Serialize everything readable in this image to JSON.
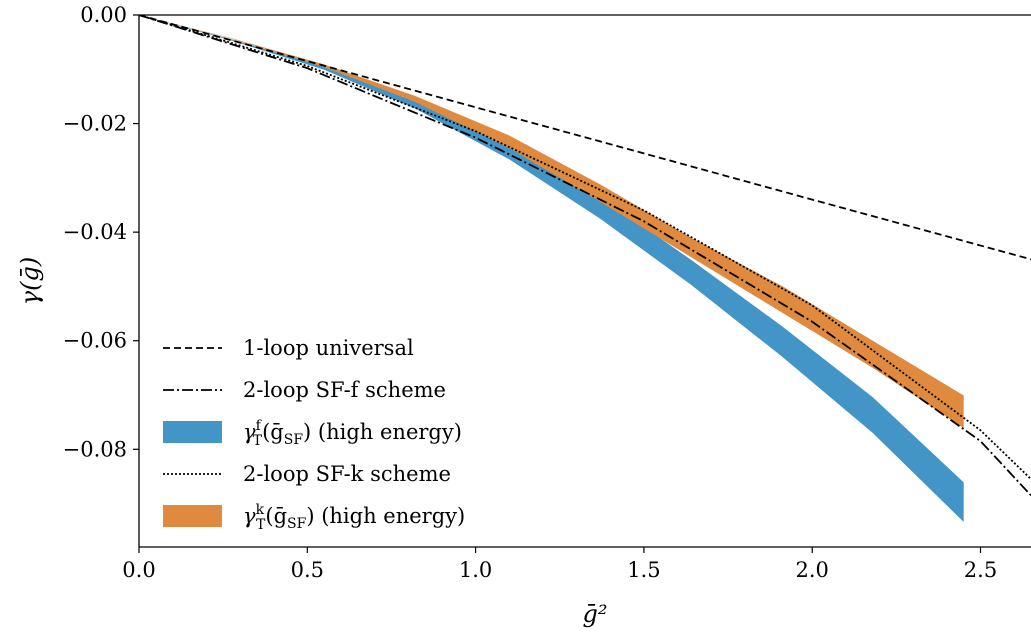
{
  "chart_data": {
    "type": "line",
    "xlabel": "ḡ²",
    "ylabel": "γ(ḡ)",
    "xlim": [
      0.0,
      2.65
    ],
    "ylim": [
      -0.098,
      0.0
    ],
    "xticks": [
      0.0,
      0.5,
      1.0,
      1.5,
      2.0,
      2.5
    ],
    "xtick_labels": [
      "0.0",
      "0.5",
      "1.0",
      "1.5",
      "2.0",
      "2.5"
    ],
    "yticks": [
      0.0,
      -0.02,
      -0.04,
      -0.06,
      -0.08
    ],
    "ytick_labels": [
      "0.00",
      "−0.02",
      "−0.04",
      "−0.06",
      "−0.08"
    ],
    "grid": false,
    "legend_position": "lower-left",
    "series": [
      {
        "name": "1-loop universal",
        "kind": "line",
        "style": "dashed",
        "color": "#000000",
        "x": [
          0.0,
          0.5,
          1.0,
          1.5,
          2.0,
          2.65
        ],
        "y": [
          0.0,
          -0.0085,
          -0.017,
          -0.0255,
          -0.034,
          -0.045
        ]
      },
      {
        "name": "2-loop SF-f scheme",
        "kind": "line",
        "style": "dashdot",
        "color": "#000000",
        "x": [
          0.0,
          0.5,
          1.0,
          1.5,
          2.0,
          2.5,
          2.65
        ],
        "y": [
          0.0,
          -0.0098,
          -0.0226,
          -0.038,
          -0.0565,
          -0.0785,
          -0.0885
        ]
      },
      {
        "name": "γ_T^f(ḡ_SF) (high energy)",
        "kind": "band",
        "color": "#4394c7",
        "x": [
          0.0,
          0.27,
          0.55,
          0.82,
          1.1,
          1.37,
          1.64,
          1.91,
          2.18,
          2.45
        ],
        "y_upper": [
          0.0,
          -0.0044,
          -0.0095,
          -0.0154,
          -0.0237,
          -0.0334,
          -0.0451,
          -0.0573,
          -0.0704,
          -0.0861
        ],
        "y_lower": [
          0.0,
          -0.0046,
          -0.0101,
          -0.0172,
          -0.0266,
          -0.0375,
          -0.0497,
          -0.0629,
          -0.077,
          -0.0934
        ]
      },
      {
        "name": "2-loop SF-k scheme",
        "kind": "line",
        "style": "dotted",
        "color": "#000000",
        "x": [
          0.0,
          0.5,
          1.0,
          1.5,
          2.0,
          2.5,
          2.65
        ],
        "y": [
          0.0,
          -0.0094,
          -0.0214,
          -0.036,
          -0.0535,
          -0.0765,
          -0.0855
        ]
      },
      {
        "name": "γ_T^k(ḡ_SF) (high energy)",
        "kind": "band",
        "color": "#e08a3f",
        "x": [
          0.0,
          0.27,
          0.55,
          0.82,
          1.1,
          1.37,
          1.64,
          1.91,
          2.18,
          2.45
        ],
        "y_upper": [
          0.0,
          -0.0042,
          -0.0091,
          -0.0149,
          -0.0222,
          -0.0312,
          -0.041,
          -0.0499,
          -0.06,
          -0.0701
        ],
        "y_lower": [
          0.0,
          -0.0043,
          -0.0096,
          -0.016,
          -0.0245,
          -0.0344,
          -0.0446,
          -0.0548,
          -0.065,
          -0.0761
        ]
      }
    ],
    "legend_entries": [
      {
        "series_index": 0,
        "label_main": "1-loop universal",
        "kind": "dashed"
      },
      {
        "series_index": 1,
        "label_main": "2-loop SF-f scheme",
        "kind": "dashdot"
      },
      {
        "series_index": 2,
        "label_sym": "γ",
        "label_sup": "f",
        "label_sub": "T",
        "label_arg": "(ḡ",
        "label_arg_sub": "SF",
        "label_tail": ") (high energy)",
        "kind": "band"
      },
      {
        "series_index": 3,
        "label_main": "2-loop SF-k scheme",
        "kind": "dotted"
      },
      {
        "series_index": 4,
        "label_sym": "γ",
        "label_sup": "k",
        "label_sub": "T",
        "label_arg": "(ḡ",
        "label_arg_sub": "SF",
        "label_tail": ") (high energy)",
        "kind": "band"
      }
    ]
  }
}
